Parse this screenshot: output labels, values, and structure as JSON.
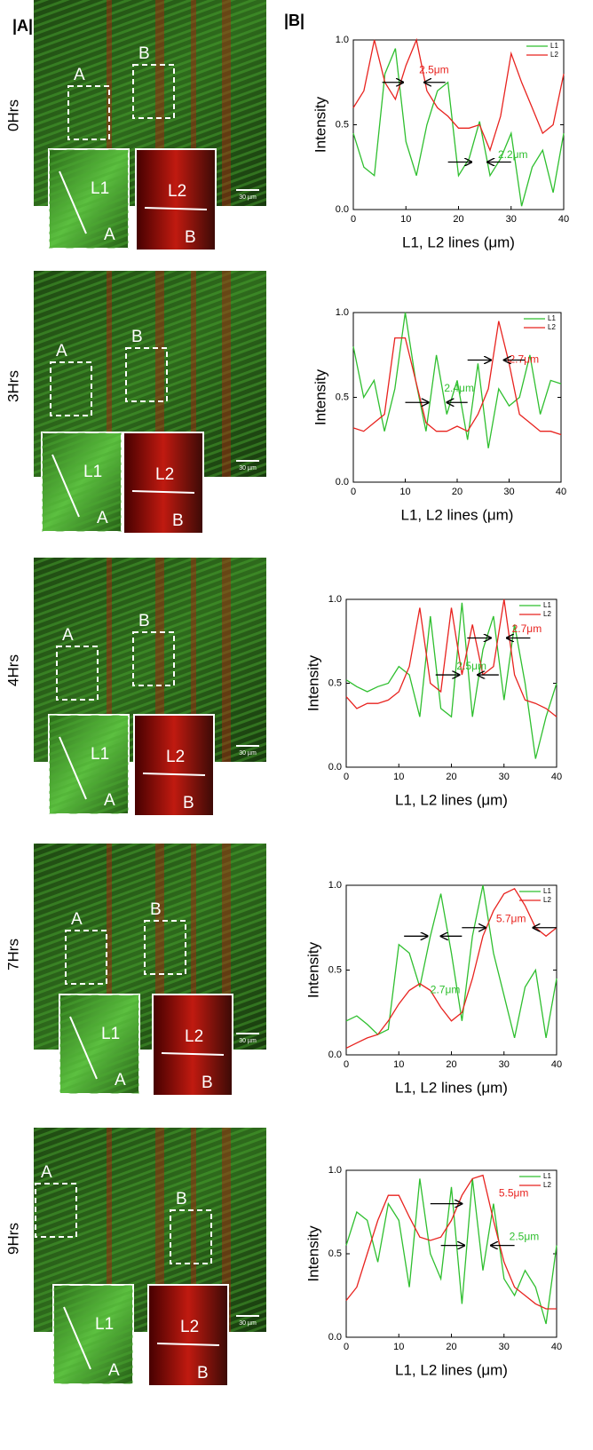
{
  "panel_labels": [
    "|A|",
    "|B|"
  ],
  "panels": [
    {
      "time": "0Hrs",
      "box_labels": [
        "A",
        "B"
      ],
      "inset_labels": [
        "L1",
        "A",
        "L2",
        "B"
      ],
      "scale": "30 µm"
    },
    {
      "time": "3Hrs",
      "box_labels": [
        "A",
        "B"
      ],
      "inset_labels": [
        "L1",
        "A",
        "L2",
        "B"
      ],
      "scale": "30 µm"
    },
    {
      "time": "4Hrs",
      "box_labels": [
        "A",
        "B"
      ],
      "inset_labels": [
        "L1",
        "A",
        "L2",
        "B"
      ],
      "scale": "30 µm"
    },
    {
      "time": "7Hrs",
      "box_labels": [
        "A",
        "B"
      ],
      "inset_labels": [
        "L1",
        "A",
        "L2",
        "B"
      ],
      "scale": "30 µm"
    },
    {
      "time": "9Hrs",
      "box_labels": [
        "A",
        "B"
      ],
      "inset_labels": [
        "L1",
        "A",
        "L2",
        "B"
      ],
      "scale": "30 µm"
    }
  ],
  "chart_data": [
    {
      "type": "line",
      "xlabel": "L1, L2 lines (μm)",
      "ylabel": "Intensity",
      "xlim": [
        0,
        40
      ],
      "xticks": [
        0,
        10,
        20,
        30,
        40
      ],
      "ylim": [
        0,
        1
      ],
      "yticks": [
        {
          "value": 0,
          "label": "0.0"
        },
        {
          "value": 0.5,
          "label": "0.5"
        },
        {
          "value": 1,
          "label": "1.0"
        }
      ],
      "x": [
        0,
        2,
        4,
        6,
        8,
        10,
        12,
        14,
        16,
        18,
        20,
        22,
        24,
        26,
        28,
        30,
        32,
        34,
        36,
        38,
        40
      ],
      "series": [
        {
          "name": "L1",
          "color": "#2fbf2f",
          "values": [
            0.45,
            0.25,
            0.2,
            0.8,
            0.95,
            0.4,
            0.2,
            0.5,
            0.7,
            0.75,
            0.2,
            0.3,
            0.52,
            0.2,
            0.3,
            0.45,
            0.02,
            0.25,
            0.35,
            0.1,
            0.45
          ]
        },
        {
          "name": "L2",
          "color": "#e8231f",
          "values": [
            0.6,
            0.7,
            1.0,
            0.75,
            0.65,
            0.85,
            1.0,
            0.7,
            0.6,
            0.55,
            0.48,
            0.48,
            0.5,
            0.35,
            0.55,
            0.92,
            0.75,
            0.6,
            0.45,
            0.5,
            0.8
          ]
        }
      ],
      "annotations": [
        {
          "text": "2.5μm",
          "color": "#e8231f"
        },
        {
          "text": "2.2μm",
          "color": "#2fbf2f"
        }
      ]
    },
    {
      "type": "line",
      "xlabel": "L1, L2 lines (μm)",
      "ylabel": "Intensity",
      "xlim": [
        0,
        40
      ],
      "xticks": [
        0,
        10,
        20,
        30,
        40
      ],
      "ylim": [
        0,
        1
      ],
      "yticks": [
        {
          "value": 0,
          "label": "0.0"
        },
        {
          "value": 0.5,
          "label": "0.5"
        },
        {
          "value": 1,
          "label": "1.0"
        }
      ],
      "x": [
        0,
        2,
        4,
        6,
        8,
        10,
        12,
        14,
        16,
        18,
        20,
        22,
        24,
        26,
        28,
        30,
        32,
        34,
        36,
        38,
        40
      ],
      "series": [
        {
          "name": "L1",
          "color": "#2fbf2f",
          "values": [
            0.8,
            0.5,
            0.6,
            0.3,
            0.55,
            1.0,
            0.6,
            0.3,
            0.75,
            0.4,
            0.6,
            0.25,
            0.7,
            0.2,
            0.55,
            0.45,
            0.5,
            0.75,
            0.4,
            0.6,
            0.58
          ]
        },
        {
          "name": "L2",
          "color": "#e8231f",
          "values": [
            0.32,
            0.3,
            0.35,
            0.4,
            0.85,
            0.85,
            0.6,
            0.35,
            0.3,
            0.3,
            0.33,
            0.3,
            0.4,
            0.55,
            0.95,
            0.7,
            0.4,
            0.35,
            0.3,
            0.3,
            0.28
          ]
        }
      ],
      "annotations": [
        {
          "text": "2.7μm",
          "color": "#e8231f"
        },
        {
          "text": "2.4μm",
          "color": "#2fbf2f"
        }
      ]
    },
    {
      "type": "line",
      "xlabel": "L1, L2 lines (μm)",
      "ylabel": "Intensity",
      "xlim": [
        0,
        40
      ],
      "xticks": [
        0,
        10,
        20,
        30,
        40
      ],
      "ylim": [
        0,
        1
      ],
      "yticks": [
        {
          "value": 0,
          "label": "0.0"
        },
        {
          "value": 0.5,
          "label": "0.5"
        },
        {
          "value": 1,
          "label": "1.0"
        }
      ],
      "x": [
        0,
        2,
        4,
        6,
        8,
        10,
        12,
        14,
        16,
        18,
        20,
        22,
        24,
        26,
        28,
        30,
        32,
        34,
        36,
        38,
        40
      ],
      "series": [
        {
          "name": "L1",
          "color": "#2fbf2f",
          "values": [
            0.52,
            0.48,
            0.45,
            0.48,
            0.5,
            0.6,
            0.55,
            0.3,
            0.9,
            0.35,
            0.3,
            0.98,
            0.3,
            0.7,
            0.9,
            0.4,
            0.85,
            0.5,
            0.05,
            0.3,
            0.5
          ]
        },
        {
          "name": "L2",
          "color": "#e8231f",
          "values": [
            0.42,
            0.35,
            0.38,
            0.38,
            0.4,
            0.45,
            0.6,
            0.95,
            0.5,
            0.45,
            0.95,
            0.55,
            0.85,
            0.55,
            0.6,
            1.0,
            0.55,
            0.4,
            0.38,
            0.35,
            0.3
          ]
        }
      ],
      "annotations": [
        {
          "text": "2.7μm",
          "color": "#e8231f"
        },
        {
          "text": "2.5μm",
          "color": "#2fbf2f"
        }
      ]
    },
    {
      "type": "line",
      "xlabel": "L1, L2 lines (μm)",
      "ylabel": "Intensity",
      "xlim": [
        0,
        40
      ],
      "xticks": [
        0,
        10,
        20,
        30,
        40
      ],
      "ylim": [
        0,
        1
      ],
      "yticks": [
        {
          "value": 0,
          "label": "0.0"
        },
        {
          "value": 0.5,
          "label": "0.5"
        },
        {
          "value": 1,
          "label": "1.0"
        }
      ],
      "x": [
        0,
        2,
        4,
        6,
        8,
        10,
        12,
        14,
        16,
        18,
        20,
        22,
        24,
        26,
        28,
        30,
        32,
        34,
        36,
        38,
        40
      ],
      "series": [
        {
          "name": "L1",
          "color": "#2fbf2f",
          "values": [
            0.2,
            0.23,
            0.18,
            0.12,
            0.15,
            0.65,
            0.6,
            0.4,
            0.7,
            0.95,
            0.6,
            0.2,
            0.7,
            1.0,
            0.6,
            0.35,
            0.1,
            0.4,
            0.5,
            0.1,
            0.45
          ]
        },
        {
          "name": "L2",
          "color": "#e8231f",
          "values": [
            0.04,
            0.07,
            0.1,
            0.12,
            0.2,
            0.3,
            0.38,
            0.42,
            0.38,
            0.28,
            0.2,
            0.25,
            0.45,
            0.7,
            0.85,
            0.95,
            0.98,
            0.88,
            0.75,
            0.7,
            0.75
          ]
        }
      ],
      "annotations": [
        {
          "text": "5.7μm",
          "color": "#e8231f"
        },
        {
          "text": "2.7μm",
          "color": "#2fbf2f"
        }
      ]
    },
    {
      "type": "line",
      "xlabel": "L1, L2 lines (μm)",
      "ylabel": "Intensity",
      "xlim": [
        0,
        40
      ],
      "xticks": [
        0,
        10,
        20,
        30,
        40
      ],
      "ylim": [
        0,
        1
      ],
      "yticks": [
        {
          "value": 0,
          "label": "0.0"
        },
        {
          "value": 0.5,
          "label": "0.5"
        },
        {
          "value": 1,
          "label": "1.0"
        }
      ],
      "x": [
        0,
        2,
        4,
        6,
        8,
        10,
        12,
        14,
        16,
        18,
        20,
        22,
        24,
        26,
        28,
        30,
        32,
        34,
        36,
        38,
        40
      ],
      "series": [
        {
          "name": "L1",
          "color": "#2fbf2f",
          "values": [
            0.55,
            0.75,
            0.7,
            0.45,
            0.8,
            0.7,
            0.3,
            0.95,
            0.5,
            0.35,
            0.9,
            0.2,
            0.95,
            0.4,
            0.8,
            0.35,
            0.25,
            0.4,
            0.3,
            0.08,
            0.55
          ]
        },
        {
          "name": "L2",
          "color": "#e8231f",
          "values": [
            0.22,
            0.3,
            0.5,
            0.7,
            0.85,
            0.85,
            0.72,
            0.6,
            0.58,
            0.6,
            0.7,
            0.85,
            0.95,
            0.97,
            0.7,
            0.45,
            0.3,
            0.25,
            0.2,
            0.17,
            0.17
          ]
        }
      ],
      "annotations": [
        {
          "text": "5.5μm",
          "color": "#e8231f"
        },
        {
          "text": "2.5μm",
          "color": "#2fbf2f"
        }
      ]
    }
  ]
}
